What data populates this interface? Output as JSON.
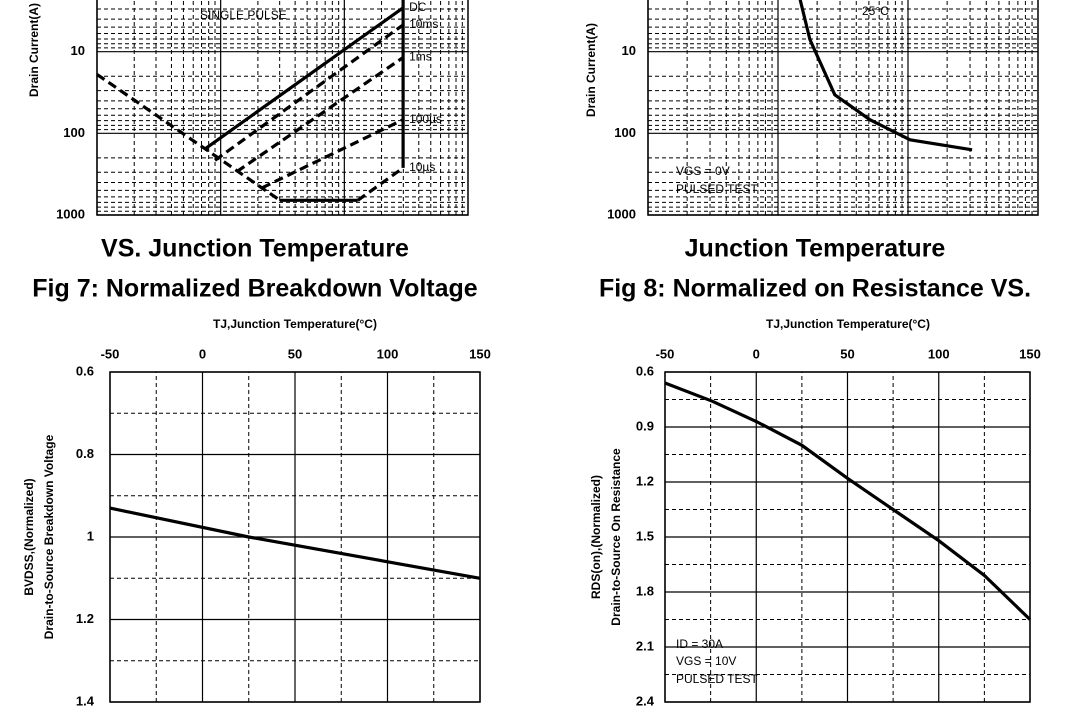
{
  "chart_data": [
    {
      "type": "line",
      "title": [
        "Fig 7: Normalized Breakdown Voltage",
        "VS. Junction Temperature"
      ],
      "x_label": "TJ,Junction Temperature(°C)",
      "y_label": [
        "BVDSS,(Normalized)",
        "Drain-to-Source Breakdown Voltage"
      ],
      "xlim": [
        -50,
        150
      ],
      "xticks": [
        -50,
        0,
        50,
        100,
        150
      ],
      "ylim": [
        0.6,
        1.4
      ],
      "yticks": [
        0.6,
        0.8,
        1,
        1.2,
        1.4
      ],
      "grid": true,
      "series": [
        {
          "color": "#000000",
          "x": [
            -50,
            25,
            150
          ],
          "values": [
            0.93,
            1.0,
            1.1
          ]
        }
      ]
    },
    {
      "type": "line",
      "title": [
        "Fig 8: Normalized on Resistance VS.",
        "Junction Temperature"
      ],
      "x_label": "TJ,Junction Temperature(°C)",
      "y_label": [
        "RDS(on),(Normalized)",
        "Drain-to-Source On Resistance"
      ],
      "xlim": [
        -50,
        150
      ],
      "xticks": [
        -50,
        0,
        50,
        100,
        150
      ],
      "ylim": [
        0.6,
        2.4
      ],
      "yticks": [
        0.6,
        0.9,
        1.2,
        1.5,
        1.8,
        2.1,
        2.4
      ],
      "grid": true,
      "annotations": [
        "PULSED TEST",
        "VGS = 10V",
        "ID = 30A"
      ],
      "series": [
        {
          "color": "#000000",
          "x": [
            -50,
            -24,
            0,
            25,
            50,
            75,
            100,
            125,
            150
          ],
          "values": [
            0.66,
            0.76,
            0.87,
            1.0,
            1.18,
            1.35,
            1.52,
            1.71,
            1.95
          ]
        }
      ]
    },
    {
      "type": "line",
      "y_label": "Drain Current(A)",
      "yscale": "log",
      "ylim": [
        1,
        1000
      ],
      "yticks": [
        10,
        100,
        1000
      ],
      "xlim": [
        0,
        1
      ],
      "grid": true,
      "annotations": [
        "SINGLE PULSE"
      ],
      "series": [
        {
          "color": "#000000",
          "dash": true,
          "x": [
            0,
            0.493
          ],
          "values": [
            19,
            660
          ]
        },
        {
          "color": "#000000",
          "x": [
            0.493,
            0.703
          ],
          "values": [
            660,
            660
          ]
        },
        {
          "name": "DC",
          "color": "#000000",
          "x": [
            0.291,
            0.825
          ],
          "values": [
            155,
            2.9
          ]
        },
        {
          "name": "10ms",
          "color": "#000000",
          "dash": true,
          "x": [
            0.318,
            0.825
          ],
          "values": [
            214,
            4.7
          ]
        },
        {
          "name": "1ms",
          "color": "#000000",
          "dash": true,
          "x": [
            0.377,
            0.825
          ],
          "values": [
            294,
            11.8
          ]
        },
        {
          "name": "100µs",
          "color": "#000000",
          "dash": true,
          "x": [
            0.445,
            0.825
          ],
          "values": [
            465,
            68
          ]
        },
        {
          "name": "10µs",
          "color": "#000000",
          "dash": true,
          "x": [
            0.703,
            0.825
          ],
          "values": [
            660,
            265
          ]
        },
        {
          "color": "#000000",
          "x": [
            0.825,
            0.825
          ],
          "values": [
            2.3,
            265
          ]
        }
      ]
    },
    {
      "type": "line",
      "y_label": "Drain Current(A)",
      "yscale": "log",
      "ylim": [
        1,
        1000
      ],
      "yticks": [
        10,
        100,
        1000
      ],
      "xlim": [
        0,
        1
      ],
      "grid": true,
      "annotations": [
        "25°C",
        "VGS = 0V",
        "PULSED TEST"
      ],
      "series": [
        {
          "color": "#000000",
          "x": [
            0.39,
            0.415,
            0.479,
            0.569,
            0.672,
            0.831
          ],
          "values": [
            2.3,
            7.1,
            33.7,
            68,
            120,
            159
          ]
        }
      ]
    }
  ]
}
